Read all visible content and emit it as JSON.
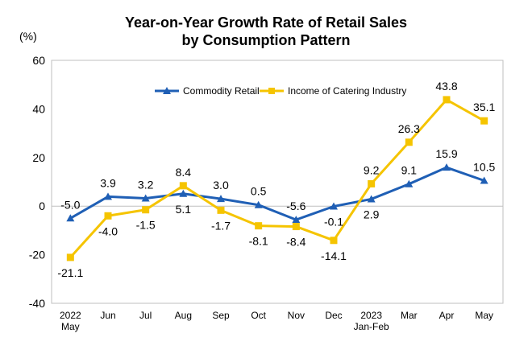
{
  "chart_data": {
    "type": "line",
    "title_lines": [
      "Year-on-Year Growth Rate of Retail Sales",
      "by Consumption Pattern"
    ],
    "y_unit": "(%)",
    "ylim": [
      -40,
      60
    ],
    "y_ticks": [
      "60",
      "40",
      "20",
      "0",
      "-20",
      "-40"
    ],
    "grid": false,
    "legend_position": "top",
    "categories": [
      [
        "2022",
        "May"
      ],
      [
        "Jun"
      ],
      [
        "Jul"
      ],
      [
        "Aug"
      ],
      [
        "Sep"
      ],
      [
        "Oct"
      ],
      [
        "Nov"
      ],
      [
        "Dec"
      ],
      [
        "2023",
        "Jan-Feb"
      ],
      [
        "Mar"
      ],
      [
        "Apr"
      ],
      [
        "May"
      ]
    ],
    "series": [
      {
        "name": "Commodity Retail",
        "color": "#1f5fb5",
        "marker": "triangle",
        "values": [
          -5.0,
          3.9,
          3.2,
          5.1,
          3.0,
          0.5,
          -5.6,
          -0.1,
          2.9,
          9.1,
          15.9,
          10.5
        ],
        "labels": [
          "-5.0",
          "3.9",
          "3.2",
          "5.1",
          "3.0",
          "0.5",
          "-5.6",
          "-0.1",
          "2.9",
          "9.1",
          "15.9",
          "10.5"
        ]
      },
      {
        "name": "Income of Catering Industry",
        "color": "#f5c400",
        "marker": "square",
        "values": [
          -21.1,
          -4.0,
          -1.5,
          8.4,
          -1.7,
          -8.1,
          -8.4,
          -14.1,
          9.2,
          26.3,
          43.8,
          35.1
        ],
        "labels": [
          "-21.1",
          "-4.0",
          "-1.5",
          "8.4",
          "-1.7",
          "-8.1",
          "-8.4",
          "-14.1",
          "9.2",
          "26.3",
          "43.8",
          "35.1"
        ]
      }
    ]
  }
}
